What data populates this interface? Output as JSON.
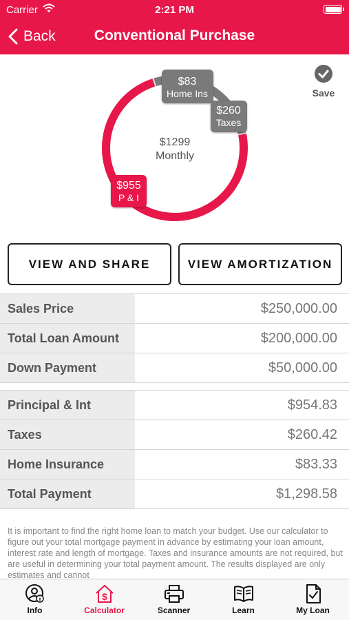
{
  "status_bar": {
    "carrier": "Carrier",
    "time": "2:21 PM"
  },
  "nav": {
    "back_label": "Back",
    "title": "Conventional Purchase"
  },
  "colors": {
    "brand": "#e8174a",
    "gray_segment": "#7a7a7a"
  },
  "save": {
    "label": "Save"
  },
  "chart_data": {
    "type": "pie",
    "center_value": "$1299",
    "center_label": "Monthly",
    "slices": [
      {
        "label": "P & I",
        "value_label": "$955",
        "value": 954.83,
        "color": "#e8174a"
      },
      {
        "label": "Taxes",
        "value_label": "$260",
        "value": 260.42,
        "color": "#7a7a7a"
      },
      {
        "label": "Home Ins",
        "value_label": "$83",
        "value": 83.33,
        "color": "#7a7a7a"
      }
    ]
  },
  "buttons": {
    "view_share": "VIEW AND SHARE",
    "view_amortization": "VIEW AMORTIZATION"
  },
  "loan_table": [
    {
      "label": "Sales Price",
      "value": "$250,000.00"
    },
    {
      "label": "Total Loan Amount",
      "value": "$200,000.00"
    },
    {
      "label": "Down Payment",
      "value": "$50,000.00"
    }
  ],
  "payment_table": [
    {
      "label": "Principal & Int",
      "value": "$954.83"
    },
    {
      "label": "Taxes",
      "value": "$260.42"
    },
    {
      "label": "Home Insurance",
      "value": "$83.33"
    },
    {
      "label": "Total Payment",
      "value": "$1,298.58"
    }
  ],
  "disclaimer": "It is important to find the right home loan to match your budget. Use our calculator to figure out your total mortgage payment in advance by estimating your loan amount, interest rate and length of mortgage. Taxes and insurance amounts are not required, but are useful in determining your total payment amount.  The results displayed are only estimates and cannot",
  "tabs": [
    {
      "label": "Info",
      "icon": "info-person-icon",
      "active": false
    },
    {
      "label": "Calculator",
      "icon": "house-dollar-icon",
      "active": true
    },
    {
      "label": "Scanner",
      "icon": "printer-icon",
      "active": false
    },
    {
      "label": "Learn",
      "icon": "book-icon",
      "active": false
    },
    {
      "label": "My Loan",
      "icon": "document-check-icon",
      "active": false
    }
  ]
}
